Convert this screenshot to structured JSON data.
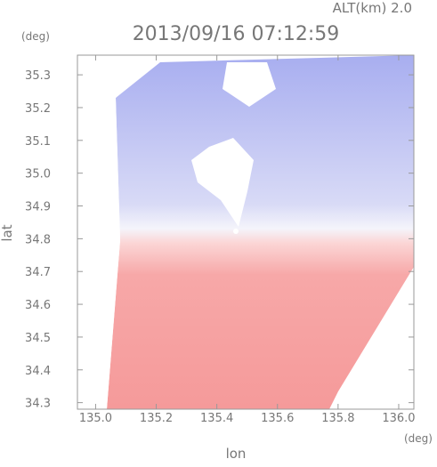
{
  "chart_data": {
    "type": "radar-field",
    "altitude_label": "ALT(km) 2.0",
    "title": "2013/09/16 07:12:59",
    "ylabel_unit": "(deg)",
    "ylabel": "lat",
    "xlabel_unit": "(deg)",
    "xlabel": "lon",
    "xlim": [
      134.94,
      136.05
    ],
    "xticks": [
      {
        "value": 135,
        "label": "135.0"
      },
      {
        "value": 135.2,
        "label": "135.2"
      },
      {
        "value": 135.4,
        "label": "135.4"
      },
      {
        "value": 135.6,
        "label": "135.6"
      },
      {
        "value": 135.8,
        "label": "135.8"
      },
      {
        "value": 136,
        "label": "136.0"
      }
    ],
    "ylim": [
      34.28,
      35.36
    ],
    "yticks": [
      {
        "value": 34.3,
        "label": "34.3"
      },
      {
        "value": 34.4,
        "label": "34.4"
      },
      {
        "value": 34.5,
        "label": "34.5"
      },
      {
        "value": 34.6,
        "label": "34.6"
      },
      {
        "value": 34.7,
        "label": "34.7"
      },
      {
        "value": 34.8,
        "label": "34.8"
      },
      {
        "value": 34.9,
        "label": "34.9"
      },
      {
        "value": 35,
        "label": "35.0"
      },
      {
        "value": 35.1,
        "label": "35.1"
      },
      {
        "value": 35.2,
        "label": "35.2"
      },
      {
        "value": 35.3,
        "label": "35.3"
      }
    ]
  }
}
